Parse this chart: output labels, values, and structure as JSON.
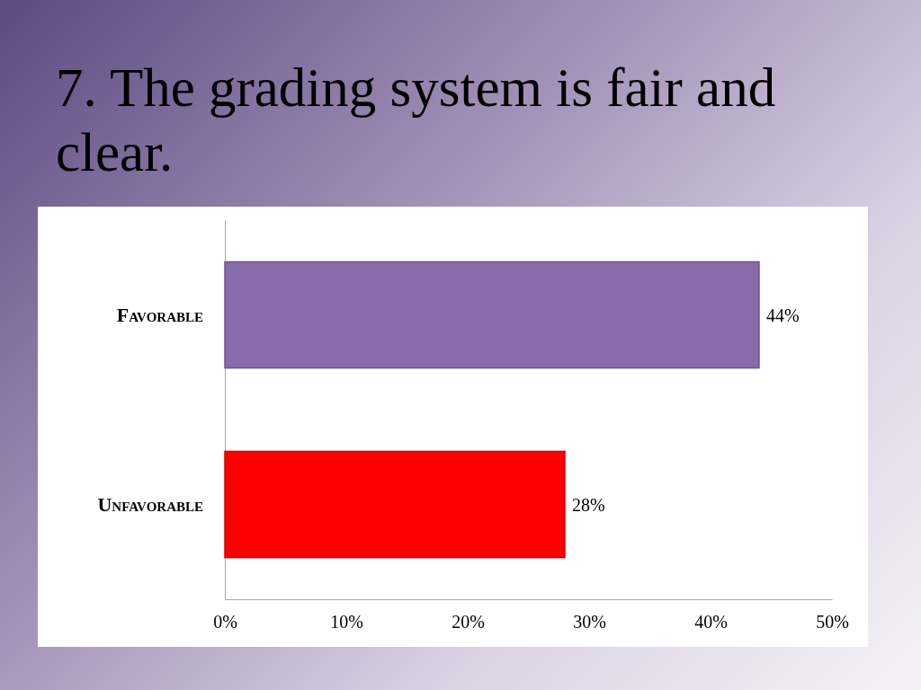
{
  "chart_data": {
    "type": "bar",
    "orientation": "horizontal",
    "title": "7. The grading system is fair and clear.",
    "categories": [
      "Favorable",
      "Unfavorable"
    ],
    "values": [
      44,
      28
    ],
    "colors": [
      "#876bab",
      "#ff0000"
    ],
    "value_labels": [
      "44%",
      "28%"
    ],
    "xlim": [
      0,
      50
    ],
    "xticks": [
      {
        "value": 0,
        "label": "0%"
      },
      {
        "value": 10,
        "label": "10%"
      },
      {
        "value": 20,
        "label": "20%"
      },
      {
        "value": 30,
        "label": "30%"
      },
      {
        "value": 40,
        "label": "40%"
      },
      {
        "value": 50,
        "label": "50%"
      }
    ]
  }
}
